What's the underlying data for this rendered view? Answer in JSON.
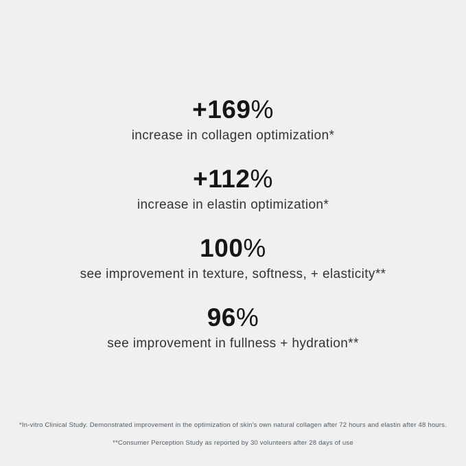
{
  "page": {
    "background_color": "#eff0f1",
    "number_color": "#161616",
    "label_color": "#333333",
    "footnote_color": "#555a5e"
  },
  "stats": [
    {
      "value": "+169",
      "unit": "%",
      "label": "increase in collagen optimization*"
    },
    {
      "value": "+112",
      "unit": "%",
      "label": "increase in elastin optimization*"
    },
    {
      "value": "100",
      "unit": "%",
      "label": "see improvement in texture, softness, + elasticity**"
    },
    {
      "value": "96",
      "unit": "%",
      "label": "see improvement in fullness + hydration**"
    }
  ],
  "footnotes": [
    "*In-vitro Clinical Study. Demonstrated improvement in the optimization of skin's own natural collagen after 72 hours and elastin after 48 hours.",
    "**Consumer Perception Study as reported by 30 volunteers after 28 days of use"
  ]
}
